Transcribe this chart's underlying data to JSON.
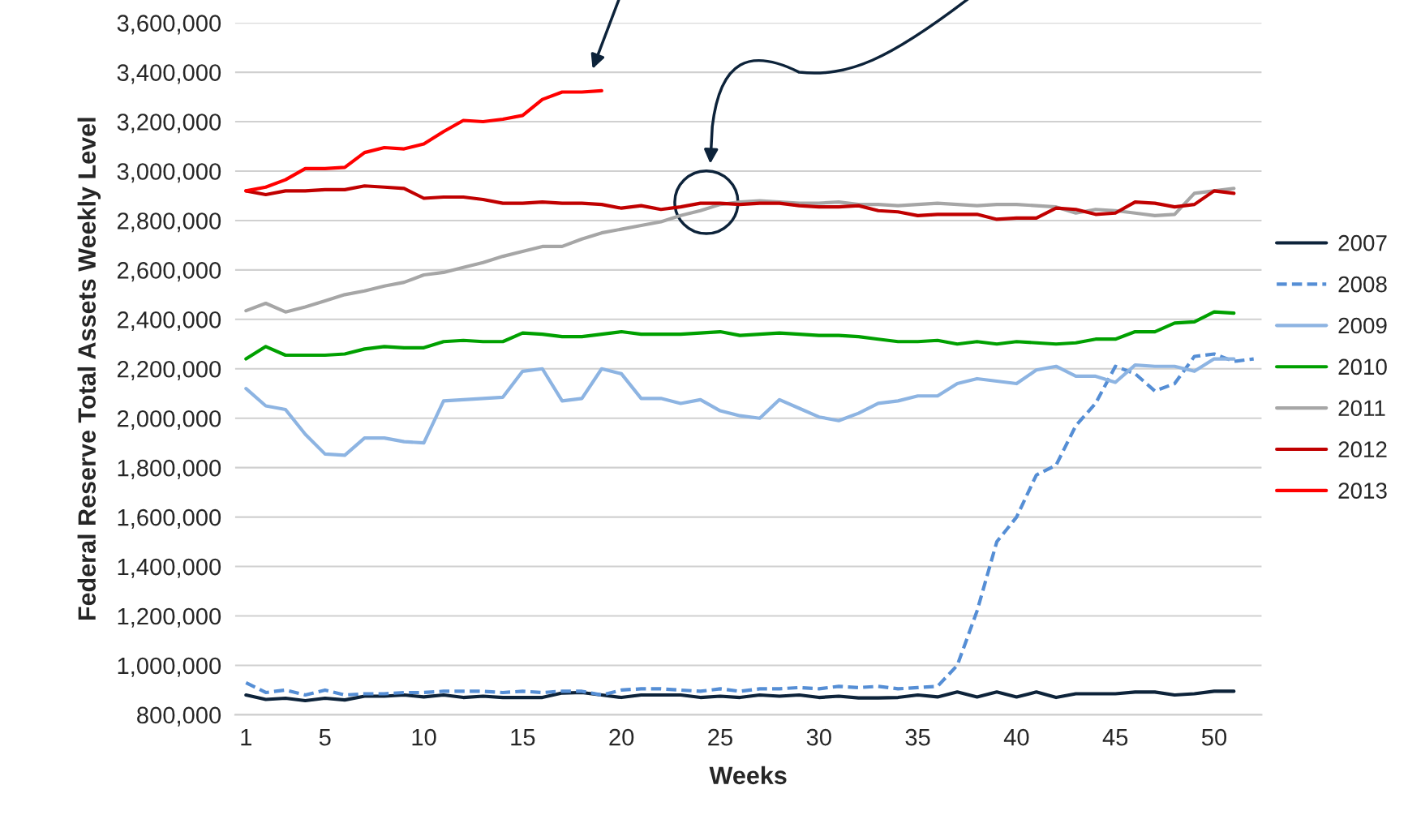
{
  "chart_data": {
    "type": "line",
    "xlabel": "Weeks",
    "ylabel": "Federal Reserve Total Assets Weekly Level",
    "categories": [
      "1",
      null,
      null,
      null,
      "5",
      null,
      null,
      null,
      null,
      "10",
      null,
      null,
      null,
      null,
      "15",
      null,
      null,
      null,
      null,
      "20",
      null,
      null,
      null,
      null,
      "25",
      null,
      null,
      null,
      null,
      "30",
      null,
      null,
      null,
      null,
      "35",
      null,
      null,
      null,
      null,
      "40",
      null,
      null,
      null,
      null,
      "45",
      null,
      null,
      null,
      null,
      "50",
      null,
      null
    ],
    "ylim": [
      800000,
      3600000
    ],
    "yticks": [
      {
        "value": 800000,
        "label": "800,000"
      },
      {
        "value": 1000000,
        "label": "1,000,000"
      },
      {
        "value": 1200000,
        "label": "1,200,000"
      },
      {
        "value": 1400000,
        "label": "1,400,000"
      },
      {
        "value": 1600000,
        "label": "1,600,000"
      },
      {
        "value": 1800000,
        "label": "1,800,000"
      },
      {
        "value": 2000000,
        "label": "2,000,000"
      },
      {
        "value": 2200000,
        "label": "2,200,000"
      },
      {
        "value": 2400000,
        "label": "2,400,000"
      },
      {
        "value": 2600000,
        "label": "2,600,000"
      },
      {
        "value": 2800000,
        "label": "2,800,000"
      },
      {
        "value": 3000000,
        "label": "3,000,000"
      },
      {
        "value": 3200000,
        "label": "3,200,000"
      },
      {
        "value": 3400000,
        "label": "3,400,000"
      },
      {
        "value": 3600000,
        "label": "3,600,000"
      }
    ],
    "grid": "y",
    "legend": "right",
    "marker": "none",
    "series": [
      {
        "name": "2007",
        "color": "#0d233a",
        "line_style": "solid",
        "values": [
          880000,
          862000,
          867000,
          857000,
          867000,
          860000,
          875000,
          875000,
          880000,
          872000,
          880000,
          870000,
          875000,
          870000,
          870000,
          870000,
          888000,
          890000,
          880000,
          870000,
          880000,
          880000,
          880000,
          870000,
          875000,
          870000,
          880000,
          875000,
          880000,
          870000,
          875000,
          868000,
          868000,
          870000,
          880000,
          872000,
          892000,
          872000,
          892000,
          872000,
          892000,
          870000,
          885000,
          885000,
          885000,
          892000,
          892000,
          880000,
          885000,
          895000,
          895000,
          null
        ]
      },
      {
        "name": "2008",
        "color": "#558ed5",
        "line_style": "dashed",
        "values": [
          930000,
          890000,
          900000,
          880000,
          900000,
          880000,
          885000,
          885000,
          890000,
          890000,
          895000,
          895000,
          895000,
          890000,
          895000,
          890000,
          895000,
          895000,
          880000,
          900000,
          905000,
          905000,
          900000,
          895000,
          905000,
          895000,
          905000,
          905000,
          910000,
          905000,
          915000,
          910000,
          915000,
          905000,
          910000,
          915000,
          1000000,
          1220000,
          1500000,
          1600000,
          1770000,
          1810000,
          1970000,
          2060000,
          2210000,
          2180000,
          2110000,
          2140000,
          2250000,
          2260000,
          2230000,
          2240000
        ]
      },
      {
        "name": "2009",
        "color": "#8db4e2",
        "line_style": "solid",
        "values": [
          2120000,
          2050000,
          2035000,
          1935000,
          1855000,
          1850000,
          1920000,
          1920000,
          1905000,
          1900000,
          2070000,
          2075000,
          2080000,
          2085000,
          2190000,
          2200000,
          2070000,
          2080000,
          2200000,
          2180000,
          2080000,
          2080000,
          2060000,
          2075000,
          2030000,
          2010000,
          2000000,
          2075000,
          2040000,
          2005000,
          1990000,
          2020000,
          2060000,
          2070000,
          2090000,
          2090000,
          2140000,
          2160000,
          2150000,
          2140000,
          2195000,
          2210000,
          2170000,
          2170000,
          2145000,
          2215000,
          2210000,
          2210000,
          2190000,
          2240000,
          2240000,
          null
        ]
      },
      {
        "name": "2010",
        "color": "#00a000",
        "line_style": "solid",
        "values": [
          2240000,
          2290000,
          2255000,
          2255000,
          2255000,
          2260000,
          2280000,
          2290000,
          2285000,
          2285000,
          2310000,
          2315000,
          2310000,
          2310000,
          2345000,
          2340000,
          2330000,
          2330000,
          2340000,
          2350000,
          2340000,
          2340000,
          2340000,
          2345000,
          2350000,
          2335000,
          2340000,
          2345000,
          2340000,
          2335000,
          2335000,
          2330000,
          2320000,
          2310000,
          2310000,
          2315000,
          2300000,
          2310000,
          2300000,
          2310000,
          2305000,
          2300000,
          2305000,
          2320000,
          2320000,
          2350000,
          2350000,
          2385000,
          2390000,
          2430000,
          2425000,
          null
        ]
      },
      {
        "name": "2011",
        "color": "#a6a6a6",
        "line_style": "solid",
        "values": [
          2435000,
          2465000,
          2430000,
          2450000,
          2475000,
          2500000,
          2515000,
          2535000,
          2550000,
          2580000,
          2590000,
          2610000,
          2630000,
          2655000,
          2675000,
          2695000,
          2695000,
          2725000,
          2750000,
          2765000,
          2780000,
          2795000,
          2820000,
          2840000,
          2865000,
          2875000,
          2880000,
          2875000,
          2870000,
          2870000,
          2875000,
          2865000,
          2865000,
          2860000,
          2865000,
          2870000,
          2865000,
          2860000,
          2865000,
          2865000,
          2860000,
          2855000,
          2830000,
          2845000,
          2840000,
          2830000,
          2820000,
          2825000,
          2910000,
          2920000,
          2930000,
          null
        ]
      },
      {
        "name": "2012",
        "color": "#c00000",
        "line_style": "solid",
        "values": [
          2920000,
          2905000,
          2920000,
          2920000,
          2925000,
          2925000,
          2940000,
          2935000,
          2930000,
          2890000,
          2895000,
          2895000,
          2885000,
          2870000,
          2870000,
          2875000,
          2870000,
          2870000,
          2865000,
          2850000,
          2860000,
          2845000,
          2855000,
          2870000,
          2870000,
          2865000,
          2870000,
          2870000,
          2860000,
          2855000,
          2855000,
          2860000,
          2840000,
          2835000,
          2820000,
          2825000,
          2825000,
          2825000,
          2805000,
          2810000,
          2810000,
          2850000,
          2845000,
          2825000,
          2830000,
          2875000,
          2870000,
          2855000,
          2865000,
          2920000,
          2910000,
          null
        ]
      },
      {
        "name": "2013",
        "color": "#ff0000",
        "line_style": "solid",
        "values": [
          2920000,
          2935000,
          2965000,
          3010000,
          3010000,
          3015000,
          3075000,
          3095000,
          3090000,
          3110000,
          3160000,
          3205000,
          3200000,
          3210000,
          3225000,
          3290000,
          3320000,
          3320000,
          3325000,
          null,
          null,
          null,
          null,
          null,
          null,
          null,
          null,
          null,
          null,
          null,
          null,
          null,
          null,
          null,
          null,
          null,
          null,
          null,
          null,
          null,
          null,
          null,
          null,
          null,
          null,
          null,
          null,
          null,
          null,
          null,
          null,
          null
        ]
      }
    ]
  }
}
